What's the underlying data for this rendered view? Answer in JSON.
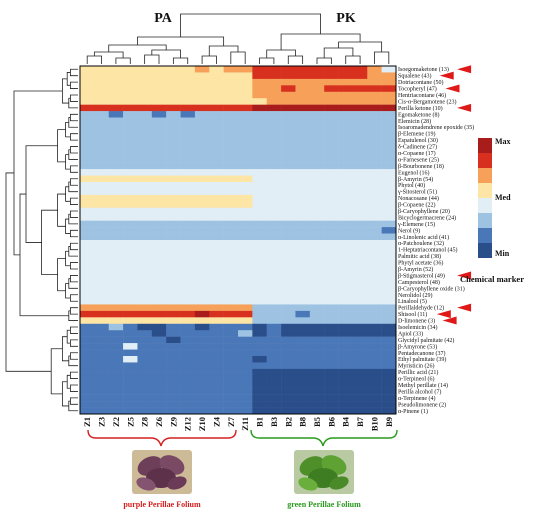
{
  "chart_data": {
    "type": "heatmap",
    "groups": [
      {
        "name": "PA",
        "caption": "purple Perillae Folium",
        "color": "#d42020"
      },
      {
        "name": "PK",
        "caption": "green Perillae Folium",
        "color": "#2a9a1e"
      }
    ],
    "columns": [
      "Z1",
      "Z3",
      "Z2",
      "Z5",
      "Z8",
      "Z6",
      "Z9",
      "Z12",
      "Z10",
      "Z4",
      "Z7",
      "Z11",
      "B1",
      "B3",
      "B2",
      "B8",
      "B5",
      "B6",
      "B4",
      "B7",
      "B10",
      "B9"
    ],
    "rows": [
      "Isoegomaketone (13)",
      "Squalene (43)",
      "Dotriacontane (50)",
      "Tocopheryl (47)",
      "Hentriacontane (46)",
      "Cis-α-Bergamotene (23)",
      "Perilla ketone (10)",
      "Egomaketone (8)",
      "Elemicin (28)",
      "Isoaromadendrene epoxide (35)",
      "β-Elemene (19)",
      "Espatulenol (30)",
      "δ-Cadinene (27)",
      "α-Copaene (17)",
      "α-Farnesene (25)",
      "β-Bourbonene (18)",
      "Eugenol (16)",
      "β-Amyrin (54)",
      "Phytol (40)",
      "γ-Sitosterol (51)",
      "Nonacosane (44)",
      "β-Copaene (22)",
      "β-Caryophyllene (20)",
      "Bicyclogermacrene (24)",
      "γ-Elemene (15)",
      "Nerol (9)",
      "α-Linolenic acid (41)",
      "α-Patchoulene (32)",
      "1-Heptatriacontanol (45)",
      "Palmitic acid (38)",
      "Phytyl acetate (36)",
      "β-Amyrin (52)",
      "β-Stigmasterol (49)",
      "Campesterol (48)",
      "β-Caryophyllene oxide (31)",
      "Nerolidol (29)",
      "Linalool (5)",
      "Perillaldehyde (12)",
      "Shisool (11)",
      "D-limonene (3)",
      "Isoelemicin (34)",
      "Apiol (33)",
      "Glycidyl palmitate (42)",
      "β-Amyrone (53)",
      "Pentadecanone (37)",
      "Ethyl palmitate (39)",
      "Myristicin (26)",
      "Perillic acid (21)",
      "α-Terpineol (6)",
      "Methyl perillate (14)",
      "Perilla alcohol (7)",
      "α-Terpinene (4)",
      "Pseudolimonene (2)",
      "α-Pinene (1)"
    ],
    "values": [
      [
        5,
        5,
        5,
        5,
        5,
        5,
        5,
        5,
        6,
        5,
        6,
        6,
        7,
        7,
        7,
        7,
        7,
        7,
        7,
        7,
        6,
        4
      ],
      [
        5,
        5,
        5,
        5,
        5,
        5,
        5,
        5,
        5,
        5,
        5,
        5,
        7,
        7,
        7,
        7,
        7,
        7,
        7,
        7,
        6,
        6
      ],
      [
        5,
        5,
        5,
        5,
        5,
        5,
        5,
        5,
        5,
        5,
        5,
        5,
        6,
        6,
        6,
        6,
        6,
        6,
        6,
        6,
        6,
        6
      ],
      [
        5,
        5,
        5,
        5,
        5,
        5,
        5,
        5,
        5,
        5,
        5,
        5,
        6,
        6,
        7,
        6,
        6,
        7,
        7,
        7,
        7,
        7
      ],
      [
        5,
        5,
        5,
        5,
        5,
        5,
        5,
        5,
        5,
        5,
        5,
        5,
        6,
        6,
        6,
        6,
        6,
        6,
        6,
        6,
        6,
        6
      ],
      [
        5,
        5,
        5,
        5,
        5,
        5,
        5,
        5,
        5,
        5,
        5,
        5,
        5,
        6,
        6,
        6,
        6,
        6,
        6,
        6,
        6,
        6
      ],
      [
        7,
        7,
        7,
        7,
        7,
        7,
        7,
        7,
        7,
        7,
        7,
        7,
        8,
        8,
        8,
        8,
        8,
        8,
        8,
        8,
        8,
        8
      ],
      [
        3,
        3,
        2,
        3,
        3,
        2,
        3,
        2,
        3,
        3,
        3,
        3,
        3,
        3,
        3,
        3,
        3,
        3,
        3,
        3,
        3,
        3
      ],
      [
        3,
        3,
        3,
        3,
        3,
        3,
        3,
        3,
        3,
        3,
        3,
        3,
        3,
        3,
        3,
        3,
        3,
        3,
        3,
        3,
        3,
        3
      ],
      [
        3,
        3,
        3,
        3,
        3,
        3,
        3,
        3,
        3,
        3,
        3,
        3,
        3,
        3,
        3,
        3,
        3,
        3,
        3,
        3,
        3,
        3
      ],
      [
        3,
        3,
        3,
        3,
        3,
        3,
        3,
        3,
        3,
        3,
        3,
        3,
        3,
        3,
        3,
        3,
        3,
        3,
        3,
        3,
        3,
        3
      ],
      [
        3,
        3,
        3,
        3,
        3,
        3,
        3,
        3,
        3,
        3,
        3,
        3,
        3,
        3,
        3,
        3,
        3,
        3,
        3,
        3,
        3,
        3
      ],
      [
        3,
        3,
        3,
        3,
        3,
        3,
        3,
        3,
        3,
        3,
        3,
        3,
        3,
        3,
        3,
        3,
        3,
        3,
        3,
        3,
        3,
        3
      ],
      [
        3,
        3,
        3,
        3,
        3,
        3,
        3,
        3,
        3,
        3,
        3,
        3,
        3,
        3,
        3,
        3,
        3,
        3,
        3,
        3,
        3,
        3
      ],
      [
        3,
        3,
        3,
        3,
        3,
        3,
        3,
        3,
        3,
        3,
        3,
        3,
        3,
        3,
        3,
        3,
        3,
        3,
        3,
        3,
        3,
        3
      ],
      [
        3,
        3,
        3,
        3,
        3,
        3,
        3,
        3,
        3,
        3,
        3,
        3,
        3,
        3,
        3,
        3,
        3,
        3,
        3,
        3,
        3,
        3
      ],
      [
        4,
        4,
        4,
        4,
        4,
        4,
        4,
        4,
        4,
        4,
        4,
        4,
        4,
        4,
        4,
        4,
        4,
        4,
        4,
        4,
        4,
        4
      ],
      [
        5,
        5,
        5,
        5,
        5,
        5,
        5,
        5,
        5,
        5,
        5,
        5,
        4,
        4,
        4,
        4,
        4,
        4,
        4,
        4,
        4,
        4
      ],
      [
        4,
        4,
        4,
        4,
        4,
        4,
        4,
        4,
        4,
        4,
        4,
        4,
        4,
        4,
        4,
        4,
        4,
        4,
        4,
        4,
        4,
        4
      ],
      [
        4,
        4,
        4,
        4,
        4,
        4,
        4,
        4,
        4,
        4,
        4,
        4,
        4,
        4,
        4,
        4,
        4,
        4,
        4,
        4,
        4,
        4
      ],
      [
        5,
        5,
        5,
        5,
        5,
        5,
        5,
        5,
        5,
        5,
        5,
        5,
        4,
        4,
        4,
        4,
        4,
        4,
        4,
        4,
        4,
        4
      ],
      [
        5,
        5,
        5,
        5,
        5,
        5,
        5,
        5,
        5,
        5,
        5,
        5,
        4,
        4,
        4,
        4,
        4,
        4,
        4,
        4,
        4,
        4
      ],
      [
        4,
        4,
        4,
        4,
        4,
        4,
        4,
        4,
        4,
        4,
        4,
        4,
        4,
        4,
        4,
        4,
        4,
        4,
        4,
        4,
        4,
        4
      ],
      [
        4,
        4,
        4,
        4,
        4,
        4,
        4,
        4,
        4,
        4,
        4,
        4,
        4,
        4,
        4,
        4,
        4,
        4,
        4,
        4,
        4,
        4
      ],
      [
        3,
        3,
        3,
        3,
        3,
        3,
        3,
        3,
        3,
        3,
        3,
        3,
        3,
        3,
        3,
        3,
        3,
        3,
        3,
        3,
        3,
        3
      ],
      [
        3,
        3,
        3,
        3,
        3,
        3,
        3,
        3,
        3,
        3,
        3,
        3,
        3,
        3,
        3,
        3,
        3,
        3,
        3,
        3,
        3,
        2
      ],
      [
        3,
        3,
        3,
        3,
        3,
        3,
        3,
        3,
        3,
        3,
        3,
        3,
        3,
        3,
        3,
        3,
        3,
        3,
        3,
        3,
        3,
        3
      ],
      [
        4,
        4,
        4,
        4,
        4,
        4,
        4,
        4,
        4,
        4,
        4,
        4,
        4,
        4,
        4,
        4,
        4,
        4,
        4,
        4,
        4,
        4
      ],
      [
        4,
        4,
        4,
        4,
        4,
        4,
        4,
        4,
        4,
        4,
        4,
        4,
        4,
        4,
        4,
        4,
        4,
        4,
        4,
        4,
        4,
        4
      ],
      [
        4,
        4,
        4,
        4,
        4,
        4,
        4,
        4,
        4,
        4,
        4,
        4,
        4,
        4,
        4,
        4,
        4,
        4,
        4,
        4,
        4,
        4
      ],
      [
        4,
        4,
        4,
        4,
        4,
        4,
        4,
        4,
        4,
        4,
        4,
        4,
        4,
        4,
        4,
        4,
        4,
        4,
        4,
        4,
        4,
        4
      ],
      [
        4,
        4,
        4,
        4,
        4,
        4,
        4,
        4,
        4,
        4,
        4,
        4,
        4,
        4,
        4,
        4,
        4,
        4,
        4,
        4,
        4,
        4
      ],
      [
        4,
        4,
        4,
        4,
        4,
        4,
        4,
        4,
        4,
        4,
        4,
        4,
        4,
        4,
        4,
        4,
        4,
        4,
        4,
        4,
        4,
        4
      ],
      [
        4,
        4,
        4,
        4,
        4,
        4,
        4,
        4,
        4,
        4,
        4,
        4,
        4,
        4,
        4,
        4,
        4,
        4,
        4,
        4,
        4,
        4
      ],
      [
        4,
        4,
        4,
        4,
        4,
        4,
        4,
        4,
        4,
        4,
        4,
        4,
        4,
        4,
        4,
        4,
        4,
        4,
        4,
        4,
        4,
        4
      ],
      [
        4,
        4,
        4,
        4,
        4,
        4,
        4,
        4,
        4,
        4,
        4,
        4,
        4,
        4,
        4,
        4,
        4,
        4,
        4,
        4,
        4,
        4
      ],
      [
        4,
        4,
        4,
        4,
        4,
        4,
        4,
        4,
        4,
        4,
        4,
        4,
        4,
        4,
        4,
        4,
        4,
        4,
        4,
        4,
        4,
        4
      ],
      [
        6,
        6,
        6,
        6,
        6,
        6,
        6,
        6,
        6,
        6,
        6,
        6,
        3,
        3,
        3,
        3,
        3,
        3,
        3,
        3,
        3,
        3
      ],
      [
        7,
        7,
        7,
        7,
        7,
        7,
        7,
        7,
        8,
        7,
        7,
        7,
        3,
        3,
        3,
        2,
        3,
        3,
        3,
        3,
        3,
        3
      ],
      [
        5,
        5,
        5,
        5,
        5,
        5,
        5,
        5,
        5,
        5,
        5,
        5,
        3,
        3,
        3,
        3,
        3,
        3,
        3,
        3,
        3,
        3
      ],
      [
        2,
        2,
        3,
        2,
        1,
        1,
        2,
        2,
        1,
        2,
        2,
        2,
        1,
        2,
        1,
        1,
        1,
        1,
        1,
        1,
        1,
        1
      ],
      [
        2,
        2,
        2,
        2,
        2,
        1,
        2,
        2,
        2,
        2,
        2,
        3,
        1,
        2,
        1,
        1,
        1,
        1,
        1,
        1,
        1,
        1
      ],
      [
        2,
        2,
        2,
        2,
        2,
        2,
        1,
        2,
        2,
        2,
        2,
        2,
        2,
        2,
        2,
        2,
        2,
        2,
        2,
        2,
        2,
        2
      ],
      [
        2,
        2,
        2,
        4,
        2,
        2,
        2,
        2,
        2,
        2,
        2,
        2,
        2,
        2,
        2,
        2,
        2,
        2,
        2,
        2,
        2,
        2
      ],
      [
        2,
        2,
        2,
        2,
        2,
        2,
        2,
        2,
        2,
        2,
        2,
        2,
        2,
        2,
        2,
        2,
        2,
        2,
        2,
        2,
        2,
        2
      ],
      [
        2,
        2,
        2,
        4,
        2,
        2,
        2,
        2,
        2,
        2,
        2,
        2,
        1,
        2,
        2,
        2,
        2,
        2,
        2,
        2,
        2,
        2
      ],
      [
        2,
        2,
        2,
        2,
        2,
        2,
        2,
        2,
        2,
        2,
        2,
        2,
        2,
        2,
        2,
        2,
        2,
        2,
        2,
        2,
        2,
        2
      ],
      [
        2,
        2,
        2,
        2,
        2,
        2,
        2,
        2,
        2,
        2,
        2,
        2,
        1,
        1,
        1,
        1,
        1,
        1,
        1,
        1,
        1,
        1
      ],
      [
        2,
        2,
        2,
        2,
        2,
        2,
        2,
        2,
        2,
        2,
        2,
        2,
        1,
        1,
        1,
        1,
        1,
        1,
        1,
        1,
        1,
        1
      ],
      [
        2,
        2,
        2,
        2,
        2,
        2,
        2,
        2,
        2,
        2,
        2,
        2,
        1,
        1,
        1,
        1,
        1,
        1,
        1,
        1,
        1,
        1
      ],
      [
        2,
        2,
        2,
        2,
        2,
        2,
        2,
        2,
        2,
        2,
        2,
        2,
        1,
        1,
        1,
        1,
        1,
        1,
        1,
        1,
        1,
        1
      ],
      [
        2,
        2,
        2,
        2,
        2,
        2,
        2,
        2,
        2,
        2,
        2,
        2,
        1,
        1,
        1,
        1,
        1,
        1,
        1,
        1,
        1,
        1
      ],
      [
        2,
        2,
        2,
        2,
        2,
        2,
        2,
        2,
        2,
        2,
        2,
        2,
        1,
        1,
        1,
        1,
        1,
        1,
        1,
        1,
        1,
        1
      ],
      [
        2,
        2,
        2,
        2,
        2,
        2,
        2,
        2,
        2,
        2,
        2,
        2,
        1,
        1,
        1,
        1,
        1,
        1,
        1,
        1,
        1,
        1
      ]
    ],
    "scale": {
      "levels": [
        "#2a4e8a",
        "#4a77b8",
        "#9ec3e2",
        "#e1eef5",
        "#fde5a5",
        "#f6a05a",
        "#d7301f",
        "#a81c1c"
      ],
      "labels": [
        "Min",
        "Med",
        "Max"
      ]
    },
    "annotation": {
      "label": "Chemical marker",
      "marked_rows": [
        "Isoegomaketone (13)",
        "Squalene (43)",
        "Tocopheryl (47)",
        "Perilla ketone (10)",
        "β-Stigmasterol (49)",
        "Perillaldehyde (12)",
        "Shisool (11)",
        "D-limonene (3)"
      ],
      "arrow_color": "#e01818"
    },
    "legend_placement": "right"
  }
}
